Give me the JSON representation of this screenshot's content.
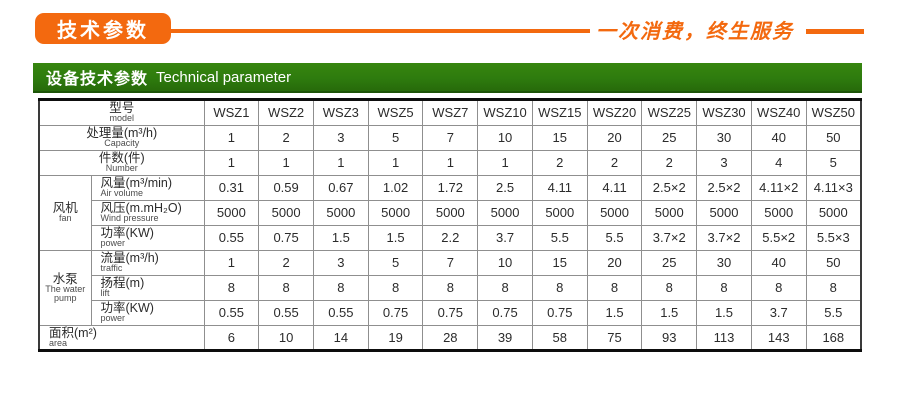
{
  "banner": {
    "badge_label": "技术参数",
    "slogan": "一次消费，终生服务"
  },
  "section": {
    "title_zh": "设备技术参数",
    "title_en": "Technical parameter"
  },
  "colors": {
    "orange": "#f3690f",
    "green": "#2e7b0e",
    "green_dark": "#1c5407"
  },
  "chart_data": {
    "type": "table",
    "header": {
      "label_zh": "型号",
      "label_en": "model",
      "models": [
        "WSZ1",
        "WSZ2",
        "WSZ3",
        "WSZ5",
        "WSZ7",
        "WSZ10",
        "WSZ15",
        "WSZ20",
        "WSZ25",
        "WSZ30",
        "WSZ40",
        "WSZ50"
      ]
    },
    "rows": [
      {
        "full": true,
        "label": {
          "zh": "处理量(m³/h)",
          "en": "Capacity"
        },
        "values": [
          "1",
          "2",
          "3",
          "5",
          "7",
          "10",
          "15",
          "20",
          "25",
          "30",
          "40",
          "50"
        ]
      },
      {
        "full": true,
        "label": {
          "zh": "件数(件)",
          "en": "Number"
        },
        "values": [
          "1",
          "1",
          "1",
          "1",
          "1",
          "1",
          "2",
          "2",
          "2",
          "3",
          "4",
          "5"
        ]
      },
      {
        "group": {
          "zh": "风机",
          "en": "fan",
          "span": 3
        },
        "label": {
          "zh": "风量(m³/min)",
          "en": "Air volume"
        },
        "values": [
          "0.31",
          "0.59",
          "0.67",
          "1.02",
          "1.72",
          "2.5",
          "4.11",
          "4.11",
          "2.5×2",
          "2.5×2",
          "4.11×2",
          "4.11×3"
        ]
      },
      {
        "label": {
          "zh": "风压(m.mH₂O)",
          "en": "Wind pressure"
        },
        "values": [
          "5000",
          "5000",
          "5000",
          "5000",
          "5000",
          "5000",
          "5000",
          "5000",
          "5000",
          "5000",
          "5000",
          "5000"
        ]
      },
      {
        "label": {
          "zh": "功率(KW)",
          "en": "power"
        },
        "values": [
          "0.55",
          "0.75",
          "1.5",
          "1.5",
          "2.2",
          "3.7",
          "5.5",
          "5.5",
          "3.7×2",
          "3.7×2",
          "5.5×2",
          "5.5×3"
        ]
      },
      {
        "group": {
          "zh": "水泵",
          "en": "The water pump",
          "span": 3
        },
        "label": {
          "zh": "流量(m³/h)",
          "en": "traffic"
        },
        "values": [
          "1",
          "2",
          "3",
          "5",
          "7",
          "10",
          "15",
          "20",
          "25",
          "30",
          "40",
          "50"
        ]
      },
      {
        "label": {
          "zh": "扬程(m)",
          "en": "lift"
        },
        "values": [
          "8",
          "8",
          "8",
          "8",
          "8",
          "8",
          "8",
          "8",
          "8",
          "8",
          "8",
          "8"
        ]
      },
      {
        "label": {
          "zh": "功率(KW)",
          "en": "power"
        },
        "values": [
          "0.55",
          "0.55",
          "0.55",
          "0.75",
          "0.75",
          "0.75",
          "0.75",
          "1.5",
          "1.5",
          "1.5",
          "3.7",
          "5.5"
        ]
      },
      {
        "full": true,
        "left": true,
        "label": {
          "zh": "面积(m²)",
          "en": "area"
        },
        "values": [
          "6",
          "10",
          "14",
          "19",
          "28",
          "39",
          "58",
          "75",
          "93",
          "113",
          "143",
          "168"
        ]
      }
    ]
  }
}
